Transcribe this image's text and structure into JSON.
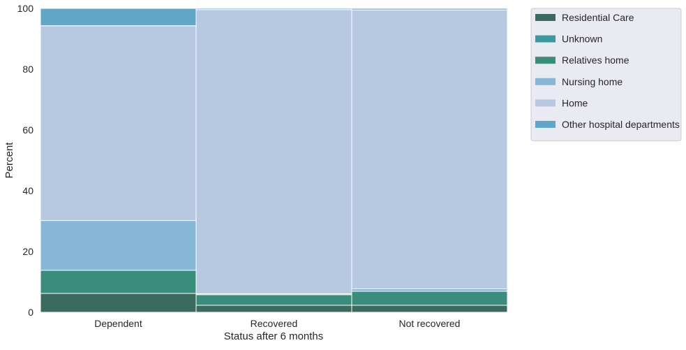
{
  "chart_data": {
    "type": "bar",
    "stacked": true,
    "title": "",
    "xlabel": "Status after 6 months",
    "ylabel": "Percent",
    "ylim": [
      0,
      100
    ],
    "yticks": [
      0,
      20,
      40,
      60,
      80,
      100
    ],
    "grid": true,
    "legend_position": "outside top-right",
    "categories": [
      "Dependent",
      "Recovered",
      "Not recovered"
    ],
    "series": [
      {
        "name": "Residential Care",
        "color": "#3b6b5e",
        "values": [
          6.2,
          2.3,
          2.3
        ]
      },
      {
        "name": "Unknown",
        "color": "#3a9aa0",
        "values": [
          0.0,
          0.0,
          0.0
        ]
      },
      {
        "name": "Relatives home",
        "color": "#3b8d7b",
        "values": [
          7.6,
          3.5,
          4.6
        ]
      },
      {
        "name": "Nursing home",
        "color": "#86b7d6",
        "values": [
          16.4,
          0.3,
          0.8
        ]
      },
      {
        "name": "Home",
        "color": "#b7c8e1",
        "values": [
          64.1,
          93.5,
          91.8
        ]
      },
      {
        "name": "Other hospital departments",
        "color": "#5fa6c8",
        "values": [
          5.7,
          0.4,
          0.5
        ]
      }
    ]
  }
}
